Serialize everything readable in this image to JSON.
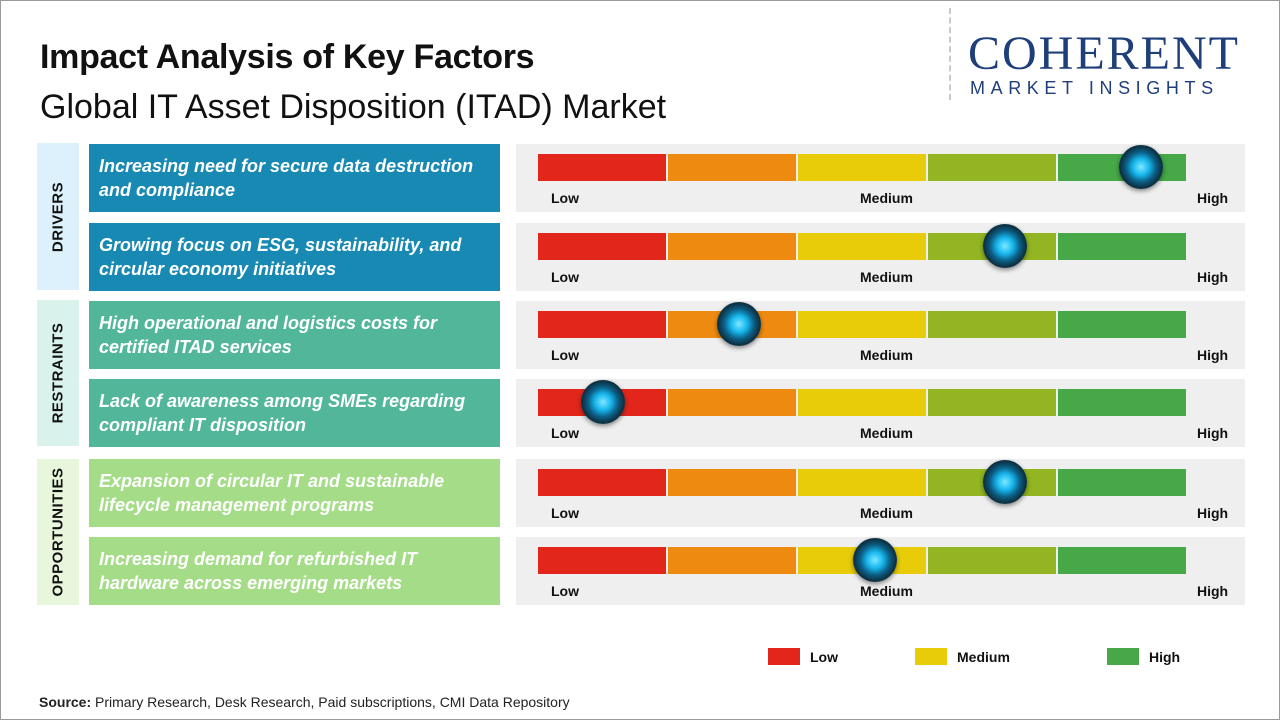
{
  "header": {
    "title": "Impact Analysis of Key Factors",
    "subtitle": "Global IT Asset Disposition (ITAD) Market"
  },
  "logo": {
    "main": "COHERENT",
    "sub": "MARKET INSIGHTS"
  },
  "colors": {
    "scale": [
      "#e2261b",
      "#ee8a10",
      "#e8cc0a",
      "#93b521",
      "#46a847"
    ],
    "drivers_box": "#1789b3",
    "restraints_box": "#52b79a",
    "opportunities_box": "#a5dc88"
  },
  "chart_data": {
    "type": "table",
    "scale_labels": {
      "low": "Low",
      "medium": "Medium",
      "high": "High"
    },
    "scale_range": [
      0,
      1
    ],
    "groups": [
      {
        "category": "DRIVERS",
        "factors": [
          {
            "label": "Increasing need for secure data destruction and compliance",
            "impact": 0.93
          },
          {
            "label": "Growing focus on ESG, sustainability, and circular economy initiatives",
            "impact": 0.72
          }
        ]
      },
      {
        "category": "RESTRAINTS",
        "factors": [
          {
            "label": "High operational and logistics costs for certified ITAD services",
            "impact": 0.31
          },
          {
            "label": "Lack of awareness among SMEs regarding compliant IT disposition",
            "impact": 0.1
          }
        ]
      },
      {
        "category": "OPPORTUNITIES",
        "factors": [
          {
            "label": "Expansion of circular IT and sustainable lifecycle management programs",
            "impact": 0.72
          },
          {
            "label": "Increasing demand for refurbished IT hardware across emerging markets",
            "impact": 0.52
          }
        ]
      }
    ],
    "legend": [
      {
        "label": "Low",
        "color": "#e2261b"
      },
      {
        "label": "Medium",
        "color": "#e8cc0a"
      },
      {
        "label": "High",
        "color": "#46a847"
      }
    ],
    "legend_position": "bottom-right"
  },
  "footer": {
    "source_label": "Source:",
    "source_text": "Primary Research, Desk Research, Paid subscriptions, CMI Data Repository"
  }
}
